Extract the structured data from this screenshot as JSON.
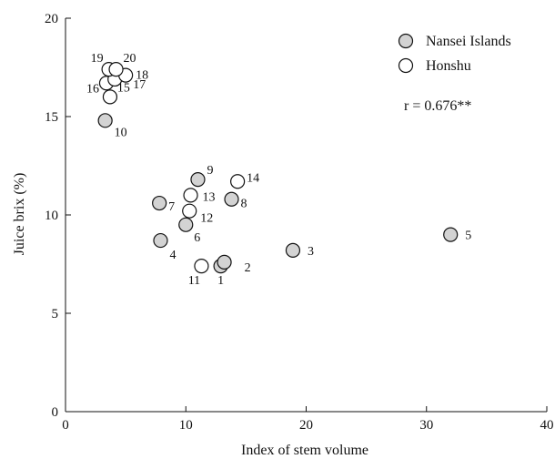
{
  "chart_data": {
    "type": "scatter",
    "xlabel": "Index of stem volume",
    "ylabel": "Juice brix (%)",
    "xlim": [
      0,
      40
    ],
    "ylim": [
      0,
      20
    ],
    "xticks": [
      0,
      10,
      20,
      30,
      40
    ],
    "yticks": [
      0,
      5,
      10,
      15,
      20
    ],
    "grid": false,
    "legend_position": "top-right",
    "annotation": "r = 0.676**",
    "series": [
      {
        "name": "Nansei Islands",
        "fill": "#d3d3d3",
        "points": [
          {
            "label": "1",
            "x": 12.9,
            "y": 7.4
          },
          {
            "label": "2",
            "x": 13.2,
            "y": 7.6
          },
          {
            "label": "3",
            "x": 18.9,
            "y": 8.2
          },
          {
            "label": "4",
            "x": 7.9,
            "y": 8.7
          },
          {
            "label": "5",
            "x": 32.0,
            "y": 9.0
          },
          {
            "label": "6",
            "x": 10.0,
            "y": 9.5
          },
          {
            "label": "7",
            "x": 7.8,
            "y": 10.6
          },
          {
            "label": "8",
            "x": 13.8,
            "y": 10.8
          },
          {
            "label": "9",
            "x": 11.0,
            "y": 11.8
          },
          {
            "label": "10",
            "x": 3.3,
            "y": 14.8
          }
        ]
      },
      {
        "name": "Honshu",
        "fill": "#ffffff",
        "points": [
          {
            "label": "11",
            "x": 11.3,
            "y": 7.4
          },
          {
            "label": "12",
            "x": 10.3,
            "y": 10.2
          },
          {
            "label": "13",
            "x": 10.4,
            "y": 11.0
          },
          {
            "label": "14",
            "x": 14.3,
            "y": 11.7
          },
          {
            "label": "15",
            "x": 3.7,
            "y": 16.0
          },
          {
            "label": "16",
            "x": 3.4,
            "y": 16.7
          },
          {
            "label": "17",
            "x": 4.1,
            "y": 16.9
          },
          {
            "label": "18",
            "x": 5.0,
            "y": 17.1
          },
          {
            "label": "19",
            "x": 3.6,
            "y": 17.4
          },
          {
            "label": "20",
            "x": 4.2,
            "y": 17.4
          }
        ]
      }
    ]
  }
}
